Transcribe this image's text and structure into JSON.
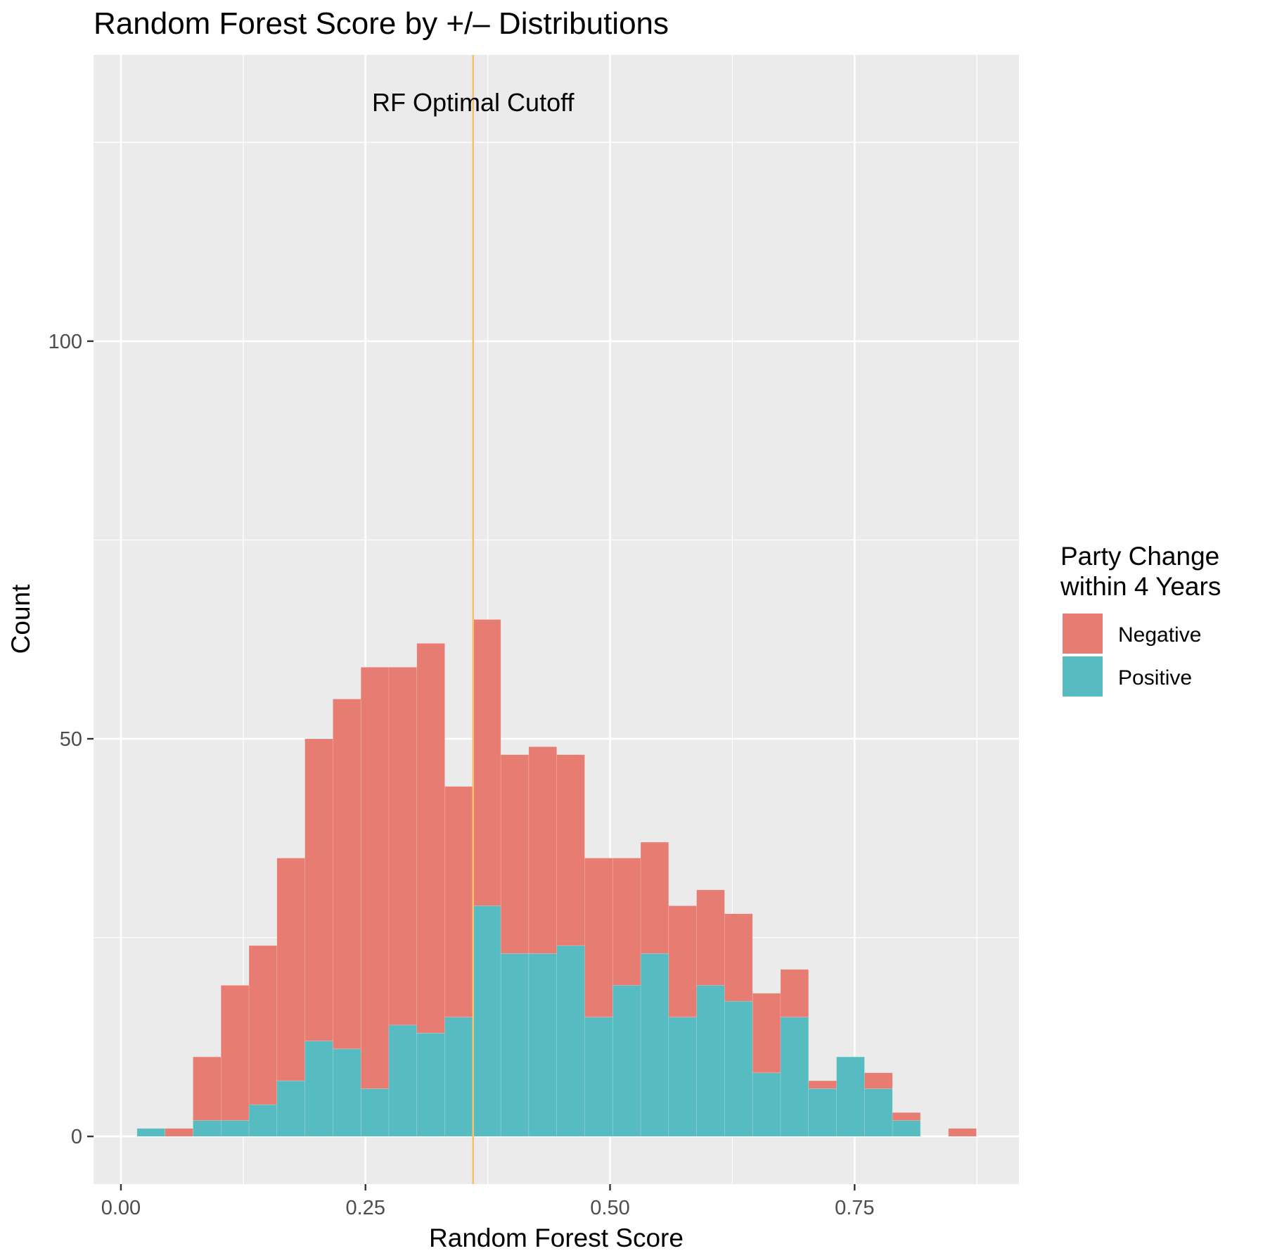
{
  "chart_data": {
    "type": "bar",
    "stacked": true,
    "title": "Random Forest Score by +/– Distributions",
    "xlabel": "Random Forest Score",
    "ylabel": "Count",
    "x_ticks": [
      0.0,
      0.25,
      0.5,
      0.75
    ],
    "x_tick_labels": [
      "0.00",
      "0.25",
      "0.50",
      "0.75"
    ],
    "y_ticks": [
      0,
      50,
      100
    ],
    "y_tick_labels": [
      "0",
      "50",
      "100"
    ],
    "xlim": [
      -0.028,
      0.918
    ],
    "ylim": [
      -6,
      136
    ],
    "bin_width": 0.0286,
    "bin_centers": [
      0.0308,
      0.0594,
      0.088,
      0.1166,
      0.1452,
      0.1738,
      0.2024,
      0.231,
      0.2596,
      0.2882,
      0.3168,
      0.3454,
      0.374,
      0.4026,
      0.4312,
      0.4598,
      0.4884,
      0.517,
      0.5456,
      0.5742,
      0.6028,
      0.6314,
      0.66,
      0.6886,
      0.7172,
      0.7458,
      0.7744,
      0.803,
      0.8316,
      0.8602
    ],
    "grid": true,
    "legend_position": "right",
    "legend": {
      "title_line1": "Party Change",
      "title_line2": "within 4 Years",
      "position": "right"
    },
    "series": [
      {
        "name": "Positive",
        "color": "#56BCC2",
        "values": [
          1,
          0,
          2,
          2,
          4,
          7,
          12,
          11,
          6,
          14,
          13,
          15,
          29,
          23,
          23,
          24,
          15,
          19,
          23,
          15,
          19,
          17,
          8,
          15,
          6,
          10,
          6,
          2,
          0,
          0
        ]
      },
      {
        "name": "Negative",
        "color": "#E77D72",
        "values": [
          0,
          1,
          8,
          17,
          20,
          28,
          38,
          44,
          53,
          45,
          49,
          29,
          36,
          25,
          26,
          24,
          20,
          16,
          14,
          14,
          12,
          11,
          10,
          6,
          1,
          0,
          2,
          1,
          0,
          1
        ]
      }
    ],
    "annotations": [
      {
        "text": "RF Optimal Cutoff",
        "x": 0.36,
        "y": 130,
        "line_color": "#F5C16C"
      }
    ]
  }
}
